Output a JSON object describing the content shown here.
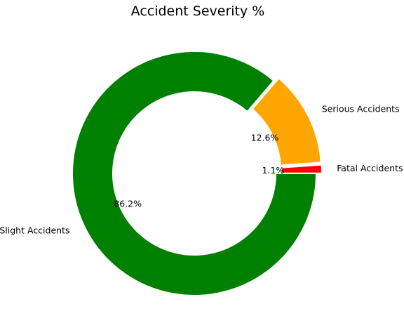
{
  "chart_data": {
    "type": "pie",
    "title": "Accident Severity %",
    "donut": true,
    "start_angle_deg": 0,
    "direction": "counterclockwise",
    "categories": [
      "Fatal Accidents",
      "Serious Accidents",
      "Slight Accidents"
    ],
    "values": [
      1.1,
      12.6,
      86.2
    ],
    "labels_pct": [
      "1.1%",
      "12.6%",
      "86.2%"
    ],
    "colors": [
      "#ff0000",
      "#ffa500",
      "#008000"
    ],
    "exploded": [
      true,
      true,
      false
    ],
    "legend": "none"
  }
}
